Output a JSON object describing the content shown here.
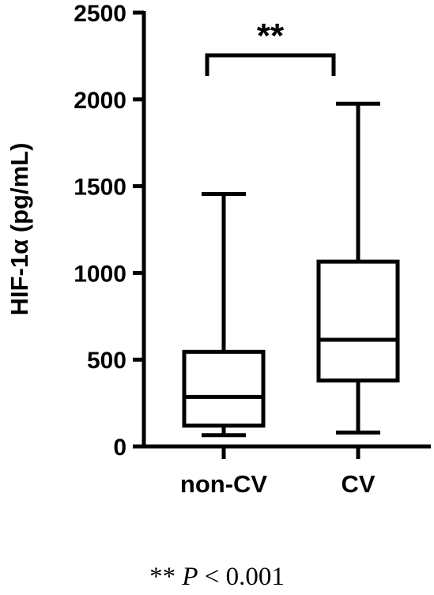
{
  "chart_data": {
    "type": "box",
    "ylabel": "HIF-1α (pg/mL)",
    "ylim": [
      0,
      2500
    ],
    "yticks": [
      0,
      500,
      1000,
      1500,
      2000,
      2500
    ],
    "categories": [
      "non-CV",
      "CV"
    ],
    "boxes": [
      {
        "category": "non-CV",
        "min": 65,
        "q1": 120,
        "median": 285,
        "q3": 545,
        "max": 1455
      },
      {
        "category": "CV",
        "min": 80,
        "q1": 380,
        "median": 615,
        "q3": 1065,
        "max": 1975
      }
    ],
    "significance": {
      "between": [
        "non-CV",
        "CV"
      ],
      "label": "**"
    }
  },
  "footnote": {
    "stars": "**",
    "p_symbol": "P",
    "rest": "< 0.001"
  }
}
